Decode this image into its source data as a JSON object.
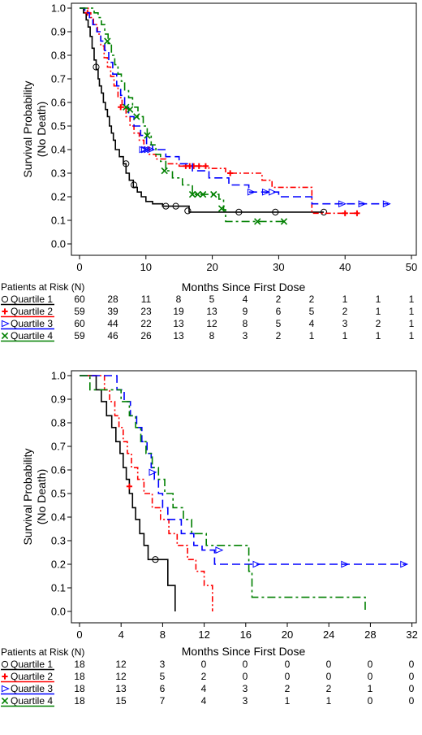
{
  "chart_data": [
    {
      "type": "line",
      "subtype": "kaplan-meier",
      "ylabel": [
        "Survival Probability",
        "(No Death)"
      ],
      "xlabel": "Months Since First Dose",
      "xlim": [
        0,
        50
      ],
      "ylim": [
        0,
        1
      ],
      "xticks": [
        "0",
        "10",
        "20",
        "30",
        "40",
        "50"
      ],
      "yticks": [
        "0.0",
        "0.1",
        "0.2",
        "0.3",
        "0.4",
        "0.5",
        "0.6",
        "0.7",
        "0.8",
        "0.9",
        "1.0"
      ],
      "risk_title": "Patients at Risk (N)",
      "series": [
        {
          "name": "Quartile 1",
          "color": "#000000",
          "marker": "circle",
          "dash": "",
          "steps": [
            [
              0,
              1.0
            ],
            [
              0.6,
              0.98
            ],
            [
              1.0,
              0.95
            ],
            [
              1.3,
              0.92
            ],
            [
              1.6,
              0.88
            ],
            [
              1.9,
              0.83
            ],
            [
              2.2,
              0.78
            ],
            [
              2.5,
              0.74
            ],
            [
              2.8,
              0.7
            ],
            [
              3.0,
              0.67
            ],
            [
              3.3,
              0.64
            ],
            [
              3.6,
              0.6
            ],
            [
              3.9,
              0.57
            ],
            [
              4.2,
              0.54
            ],
            [
              4.5,
              0.5
            ],
            [
              4.8,
              0.47
            ],
            [
              5.1,
              0.44
            ],
            [
              5.4,
              0.4
            ],
            [
              6.0,
              0.37
            ],
            [
              6.6,
              0.34
            ],
            [
              7.0,
              0.3
            ],
            [
              7.5,
              0.27
            ],
            [
              8.1,
              0.24
            ],
            [
              8.7,
              0.22
            ],
            [
              9.3,
              0.2
            ],
            [
              10.0,
              0.18
            ],
            [
              11.0,
              0.17
            ],
            [
              12.5,
              0.16
            ],
            [
              16.5,
              0.135
            ],
            [
              36.8,
              0.135
            ]
          ],
          "censors": [
            [
              2.5,
              0.75
            ],
            [
              7.0,
              0.34
            ],
            [
              8.2,
              0.25
            ],
            [
              13.0,
              0.16
            ],
            [
              14.5,
              0.16
            ],
            [
              16.3,
              0.14
            ],
            [
              24.0,
              0.135
            ],
            [
              29.5,
              0.135
            ],
            [
              36.8,
              0.135
            ]
          ]
        },
        {
          "name": "Quartile 2",
          "color": "#ff0000",
          "marker": "plus",
          "dash": "7 3 2 3",
          "steps": [
            [
              0,
              1.0
            ],
            [
              1.3,
              0.98
            ],
            [
              1.7,
              0.96
            ],
            [
              2.1,
              0.93
            ],
            [
              2.7,
              0.89
            ],
            [
              3.2,
              0.84
            ],
            [
              3.7,
              0.79
            ],
            [
              4.2,
              0.75
            ],
            [
              4.7,
              0.71
            ],
            [
              5.2,
              0.67
            ],
            [
              5.8,
              0.62
            ],
            [
              6.4,
              0.58
            ],
            [
              7.0,
              0.54
            ],
            [
              7.6,
              0.5
            ],
            [
              8.2,
              0.47
            ],
            [
              9.0,
              0.44
            ],
            [
              9.7,
              0.41
            ],
            [
              10.5,
              0.38
            ],
            [
              11.5,
              0.36
            ],
            [
              13.0,
              0.34
            ],
            [
              15.0,
              0.33
            ],
            [
              19.5,
              0.32
            ],
            [
              22.0,
              0.3
            ],
            [
              27.5,
              0.27
            ],
            [
              29.0,
              0.24
            ],
            [
              35.0,
              0.13
            ],
            [
              42.2,
              0.13
            ]
          ],
          "censors": [
            [
              1.2,
              0.98
            ],
            [
              6.2,
              0.58
            ],
            [
              16.0,
              0.33
            ],
            [
              16.6,
              0.33
            ],
            [
              17.2,
              0.33
            ],
            [
              18.0,
              0.33
            ],
            [
              19.0,
              0.33
            ],
            [
              22.7,
              0.3
            ],
            [
              40.0,
              0.13
            ],
            [
              41.8,
              0.13
            ]
          ]
        },
        {
          "name": "Quartile 3",
          "color": "#0000ff",
          "marker": "triangle",
          "dash": "10 5",
          "steps": [
            [
              0,
              1.0
            ],
            [
              0.8,
              0.98
            ],
            [
              1.5,
              0.96
            ],
            [
              2.0,
              0.93
            ],
            [
              2.6,
              0.9
            ],
            [
              3.2,
              0.86
            ],
            [
              3.8,
              0.82
            ],
            [
              4.4,
              0.77
            ],
            [
              5.0,
              0.72
            ],
            [
              5.6,
              0.67
            ],
            [
              6.2,
              0.63
            ],
            [
              6.8,
              0.58
            ],
            [
              7.4,
              0.54
            ],
            [
              8.2,
              0.5
            ],
            [
              9.2,
              0.46
            ],
            [
              10.1,
              0.42
            ],
            [
              11.0,
              0.4
            ],
            [
              13.0,
              0.37
            ],
            [
              15.0,
              0.34
            ],
            [
              17.0,
              0.31
            ],
            [
              19.5,
              0.28
            ],
            [
              22.5,
              0.25
            ],
            [
              25.5,
              0.22
            ],
            [
              30.0,
              0.2
            ],
            [
              35.0,
              0.17
            ],
            [
              46.5,
              0.17
            ]
          ],
          "censors": [
            [
              9.5,
              0.4
            ],
            [
              9.8,
              0.4
            ],
            [
              10.2,
              0.4
            ],
            [
              10.7,
              0.4
            ],
            [
              25.8,
              0.22
            ],
            [
              28.0,
              0.22
            ],
            [
              29.0,
              0.22
            ],
            [
              39.5,
              0.17
            ],
            [
              42.5,
              0.17
            ],
            [
              46.2,
              0.17
            ]
          ]
        },
        {
          "name": "Quartile 4",
          "color": "#008000",
          "marker": "x",
          "dash": "10 4 3 4",
          "steps": [
            [
              0,
              1.0
            ],
            [
              2.2,
              0.98
            ],
            [
              2.8,
              0.96
            ],
            [
              3.3,
              0.93
            ],
            [
              3.8,
              0.89
            ],
            [
              4.3,
              0.85
            ],
            [
              4.8,
              0.8
            ],
            [
              5.3,
              0.76
            ],
            [
              5.8,
              0.72
            ],
            [
              6.3,
              0.69
            ],
            [
              6.8,
              0.65
            ],
            [
              7.4,
              0.62
            ],
            [
              8.0,
              0.58
            ],
            [
              8.8,
              0.54
            ],
            [
              9.6,
              0.5
            ],
            [
              10.2,
              0.46
            ],
            [
              10.8,
              0.42
            ],
            [
              11.5,
              0.38
            ],
            [
              12.2,
              0.35
            ],
            [
              13.0,
              0.31
            ],
            [
              14.0,
              0.28
            ],
            [
              15.5,
              0.25
            ],
            [
              17.0,
              0.21
            ],
            [
              21.0,
              0.19
            ],
            [
              21.7,
              0.145
            ],
            [
              22.0,
              0.095
            ],
            [
              31.0,
              0.095
            ]
          ],
          "censors": [
            [
              4.2,
              0.86
            ],
            [
              7.0,
              0.58
            ],
            [
              7.6,
              0.57
            ],
            [
              8.6,
              0.54
            ],
            [
              10.2,
              0.46
            ],
            [
              12.8,
              0.31
            ],
            [
              17.0,
              0.21
            ],
            [
              17.8,
              0.21
            ],
            [
              18.6,
              0.21
            ],
            [
              20.2,
              0.21
            ],
            [
              21.4,
              0.15
            ],
            [
              26.8,
              0.095
            ],
            [
              30.8,
              0.095
            ]
          ]
        }
      ],
      "risk_table": [
        [
          "60",
          "28",
          "11",
          "8",
          "5",
          "4",
          "2",
          "2",
          "1",
          "1",
          "1"
        ],
        [
          "59",
          "39",
          "23",
          "19",
          "13",
          "9",
          "6",
          "5",
          "2",
          "1",
          "1"
        ],
        [
          "60",
          "44",
          "22",
          "13",
          "12",
          "8",
          "5",
          "4",
          "3",
          "2",
          "1"
        ],
        [
          "59",
          "46",
          "26",
          "13",
          "8",
          "3",
          "2",
          "1",
          "1",
          "1",
          "1"
        ]
      ]
    },
    {
      "type": "line",
      "subtype": "kaplan-meier",
      "ylabel": [
        "Survival Probability",
        "(No Death)"
      ],
      "xlabel": "Months Since First Dose",
      "xlim": [
        0,
        32
      ],
      "ylim": [
        0,
        1
      ],
      "xticks": [
        "0",
        "4",
        "8",
        "12",
        "16",
        "20",
        "24",
        "28",
        "32"
      ],
      "yticks": [
        "0.0",
        "0.1",
        "0.2",
        "0.3",
        "0.4",
        "0.5",
        "0.6",
        "0.7",
        "0.8",
        "0.9",
        "1.0"
      ],
      "risk_title": "Patients at Risk (N)",
      "series": [
        {
          "name": "Quartile 1",
          "color": "#000000",
          "marker": "circle",
          "dash": "",
          "steps": [
            [
              0,
              1.0
            ],
            [
              1.6,
              0.94
            ],
            [
              2.1,
              0.89
            ],
            [
              2.6,
              0.83
            ],
            [
              3.1,
              0.78
            ],
            [
              3.5,
              0.72
            ],
            [
              3.9,
              0.67
            ],
            [
              4.2,
              0.61
            ],
            [
              4.5,
              0.56
            ],
            [
              4.8,
              0.5
            ],
            [
              5.1,
              0.44
            ],
            [
              5.4,
              0.39
            ],
            [
              5.8,
              0.33
            ],
            [
              6.2,
              0.28
            ],
            [
              6.6,
              0.22
            ],
            [
              8.5,
              0.11
            ],
            [
              9.2,
              0.0
            ]
          ],
          "censors": [
            [
              7.3,
              0.22
            ]
          ]
        },
        {
          "name": "Quartile 2",
          "color": "#ff0000",
          "marker": "plus",
          "dash": "7 3 2 3",
          "steps": [
            [
              0,
              1.0
            ],
            [
              2.4,
              0.94
            ],
            [
              2.9,
              0.89
            ],
            [
              3.4,
              0.83
            ],
            [
              3.8,
              0.78
            ],
            [
              4.2,
              0.72
            ],
            [
              4.6,
              0.67
            ],
            [
              5.0,
              0.61
            ],
            [
              5.6,
              0.56
            ],
            [
              6.2,
              0.5
            ],
            [
              7.0,
              0.44
            ],
            [
              7.8,
              0.39
            ],
            [
              8.6,
              0.33
            ],
            [
              9.4,
              0.28
            ],
            [
              10.4,
              0.22
            ],
            [
              11.2,
              0.17
            ],
            [
              12.0,
              0.11
            ],
            [
              12.8,
              0.0
            ]
          ],
          "censors": [
            [
              4.8,
              0.53
            ]
          ]
        },
        {
          "name": "Quartile 3",
          "color": "#0000ff",
          "marker": "triangle",
          "dash": "10 5",
          "steps": [
            [
              0,
              1.0
            ],
            [
              3.6,
              0.94
            ],
            [
              4.3,
              0.89
            ],
            [
              4.9,
              0.83
            ],
            [
              5.5,
              0.78
            ],
            [
              6.0,
              0.72
            ],
            [
              6.5,
              0.67
            ],
            [
              6.9,
              0.61
            ],
            [
              7.2,
              0.56
            ],
            [
              7.6,
              0.5
            ],
            [
              8.0,
              0.44
            ],
            [
              8.5,
              0.39
            ],
            [
              9.8,
              0.33
            ],
            [
              11.0,
              0.28
            ],
            [
              11.8,
              0.26
            ],
            [
              13.0,
              0.2
            ],
            [
              31.5,
              0.2
            ]
          ],
          "censors": [
            [
              7.0,
              0.59
            ],
            [
              13.4,
              0.26
            ],
            [
              17.0,
              0.2
            ],
            [
              25.5,
              0.2
            ],
            [
              31.2,
              0.2
            ]
          ]
        },
        {
          "name": "Quartile 4",
          "color": "#008000",
          "marker": "x",
          "dash": "10 4 3 4",
          "steps": [
            [
              0,
              1.0
            ],
            [
              1.0,
              0.94
            ],
            [
              4.0,
              0.89
            ],
            [
              4.8,
              0.83
            ],
            [
              5.4,
              0.78
            ],
            [
              5.9,
              0.72
            ],
            [
              6.4,
              0.67
            ],
            [
              7.0,
              0.61
            ],
            [
              7.6,
              0.56
            ],
            [
              8.2,
              0.5
            ],
            [
              9.0,
              0.44
            ],
            [
              10.0,
              0.39
            ],
            [
              10.8,
              0.33
            ],
            [
              12.2,
              0.28
            ],
            [
              16.3,
              0.17
            ],
            [
              16.6,
              0.06
            ],
            [
              27.5,
              0.0
            ]
          ],
          "censors": []
        }
      ],
      "risk_table": [
        [
          "18",
          "12",
          "3",
          "0",
          "0",
          "0",
          "0",
          "0",
          "0"
        ],
        [
          "18",
          "12",
          "5",
          "2",
          "0",
          "0",
          "0",
          "0",
          "0"
        ],
        [
          "18",
          "13",
          "6",
          "4",
          "3",
          "2",
          "2",
          "1",
          "0"
        ],
        [
          "18",
          "15",
          "7",
          "4",
          "3",
          "1",
          "1",
          "0",
          "0"
        ]
      ]
    }
  ]
}
